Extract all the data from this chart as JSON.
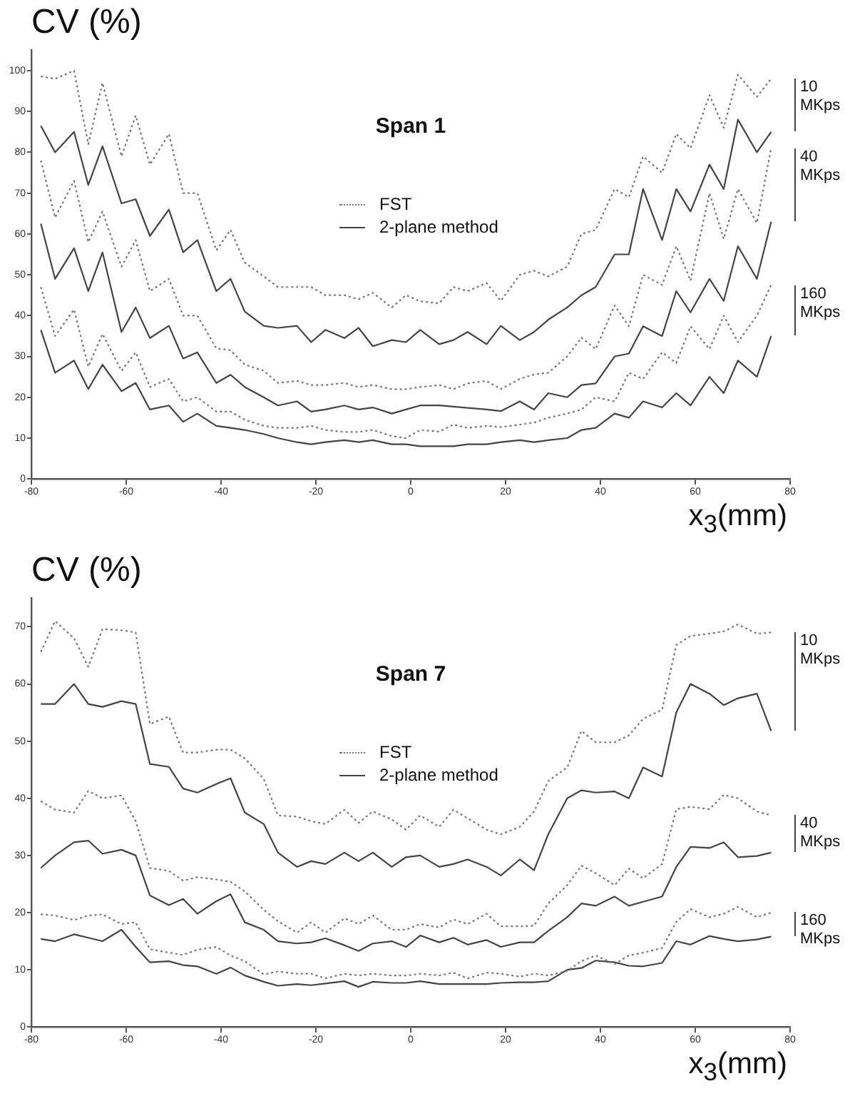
{
  "chart_data": [
    {
      "type": "line",
      "title": "Span 1",
      "ylabel": "CV (%)",
      "xlabel": "x$_{3}$(mm)",
      "x": [
        -78,
        -75,
        -71,
        -68,
        -65,
        -61,
        -58,
        -55,
        -51,
        -48,
        -45,
        -41,
        -38,
        -35,
        -31,
        -28,
        -24,
        -21,
        -18,
        -14,
        -11,
        -8,
        -4,
        -1,
        2,
        6,
        9,
        12,
        16,
        19,
        23,
        26,
        29,
        33,
        36,
        39,
        43,
        46,
        49,
        53,
        56,
        59,
        63,
        66,
        69,
        73,
        76
      ],
      "xlim": [
        -80,
        80
      ],
      "xticks": [
        -80,
        -60,
        -40,
        -20,
        0,
        20,
        40,
        60,
        80
      ],
      "ylim": [
        0,
        105
      ],
      "yticks": [
        0,
        10,
        20,
        30,
        40,
        50,
        60,
        70,
        80,
        90,
        100
      ],
      "grid": false,
      "legend": "top",
      "marker": "none",
      "series": [
        {
          "name": "FST",
          "color": "#777777",
          "line_style": "dotted",
          "values": [
            98.6,
            98,
            100,
            82,
            97,
            79,
            89,
            77,
            84.5,
            70,
            70,
            56,
            61,
            53,
            49.6,
            47,
            47,
            47,
            45,
            45,
            44,
            45.6,
            42,
            45,
            43.5,
            43,
            47,
            46,
            48,
            43.6,
            50,
            51,
            49.6,
            52,
            60,
            61,
            71,
            69,
            79,
            75,
            84.5,
            81,
            94,
            86,
            99,
            93.6,
            98
          ]
        },
        {
          "name": "2-plane method",
          "color": "#444444",
          "line_style": "solid",
          "values": [
            86.5,
            80,
            85,
            72,
            81.5,
            67.5,
            68.5,
            59.5,
            66,
            55.5,
            58.5,
            46,
            49,
            41,
            37.5,
            37,
            37.5,
            33.5,
            36.5,
            34.5,
            37,
            32.5,
            34,
            33.5,
            36.5,
            33,
            34,
            36,
            33,
            37.5,
            34,
            36,
            39,
            42,
            45,
            47,
            55,
            55,
            71,
            58.5,
            71,
            65.5,
            77,
            71,
            88,
            80,
            85
          ]
        },
        {
          "color": "#777777",
          "line_style": "dotted",
          "values": [
            78,
            64,
            73,
            58,
            65.5,
            52,
            58.5,
            46,
            49,
            40,
            40,
            32,
            31.5,
            28,
            26.5,
            23.5,
            24,
            23,
            23,
            23.5,
            22.5,
            23,
            22,
            22,
            22.5,
            23,
            22,
            23.4,
            24,
            22,
            24.5,
            25.6,
            26,
            30,
            34.6,
            31.8,
            42.5,
            37.4,
            50,
            47.5,
            57,
            48.6,
            70,
            58.8,
            71,
            62.7,
            81
          ]
        },
        {
          "color": "#444444",
          "line_style": "solid",
          "values": [
            62.5,
            49,
            56.5,
            46,
            55.5,
            36,
            42,
            34.5,
            37.5,
            29.5,
            31,
            23.5,
            25.5,
            22.5,
            20,
            18,
            19,
            16.5,
            17,
            18,
            17,
            17.5,
            16,
            17,
            18,
            18,
            17.7,
            17.4,
            17,
            16.6,
            19,
            17,
            21,
            20,
            23,
            23.4,
            30,
            30.7,
            37.4,
            35,
            46,
            40.8,
            49,
            43.6,
            57,
            49,
            63
          ]
        },
        {
          "color": "#777777",
          "line_style": "dotted",
          "values": [
            47,
            35,
            41.5,
            27.5,
            35.5,
            26.5,
            31,
            22.5,
            24.5,
            19,
            20,
            16.5,
            16.5,
            14.5,
            13,
            12.5,
            12.5,
            13,
            12,
            11.5,
            11.5,
            12,
            10.5,
            10,
            12,
            11.6,
            13.3,
            12.5,
            13,
            12.7,
            13.3,
            13.8,
            15,
            16,
            17,
            20,
            19,
            26,
            24.5,
            31,
            28.4,
            37.4,
            31.8,
            40,
            33.5,
            40,
            47.5
          ]
        },
        {
          "color": "#444444",
          "line_style": "solid",
          "values": [
            36.5,
            26,
            29,
            22,
            28,
            21.5,
            23.5,
            17,
            18,
            14,
            16,
            13,
            12.5,
            12,
            11,
            10,
            9,
            8.5,
            9,
            9.5,
            9,
            9.5,
            8.5,
            8.5,
            8,
            8,
            8,
            8.5,
            8.5,
            9,
            9.5,
            9,
            9.5,
            10,
            12,
            12.5,
            16,
            15,
            19,
            17.5,
            21,
            18,
            25,
            21,
            29,
            25,
            35
          ]
        }
      ],
      "annotations": [
        "10 MKps",
        "40 MKps",
        "160 MKps"
      ]
    },
    {
      "type": "line",
      "title": "Span 7",
      "ylabel": "CV (%)",
      "xlabel": "x$_{3}$(mm)",
      "x": [
        -78,
        -75,
        -71,
        -68,
        -65,
        -61,
        -58,
        -55,
        -51,
        -48,
        -45,
        -41,
        -38,
        -35,
        -31,
        -28,
        -24,
        -21,
        -18,
        -14,
        -11,
        -8,
        -4,
        -1,
        2,
        6,
        9,
        12,
        16,
        19,
        23,
        26,
        29,
        33,
        36,
        39,
        43,
        46,
        49,
        53,
        56,
        59,
        63,
        66,
        69,
        73,
        76
      ],
      "xlim": [
        -80,
        80
      ],
      "xticks": [
        -80,
        -60,
        -40,
        -20,
        0,
        20,
        40,
        60,
        80
      ],
      "ylim": [
        0,
        75
      ],
      "yticks": [
        0,
        10,
        20,
        30,
        40,
        50,
        60,
        70
      ],
      "grid": false,
      "legend": "top",
      "marker": "none",
      "series": [
        {
          "name": "FST",
          "color": "#777777",
          "line_style": "dotted",
          "values": [
            65.6,
            71,
            68,
            63,
            69.6,
            69.4,
            69,
            53,
            54.3,
            48,
            48,
            48.5,
            48.5,
            47,
            43.4,
            37,
            36.8,
            36,
            35.5,
            38,
            35.7,
            37.7,
            36.3,
            34.5,
            37,
            35,
            38,
            36.5,
            34.5,
            33.7,
            35,
            37.7,
            43,
            45.4,
            51.8,
            49.8,
            49.8,
            51,
            53.9,
            55.5,
            66.8,
            68.4,
            68.8,
            69.2,
            70.4,
            68.8,
            69
          ]
        },
        {
          "name": "2-plane method",
          "color": "#444444",
          "line_style": "solid",
          "values": [
            56.5,
            56.5,
            60,
            56.5,
            56,
            57,
            56.5,
            46,
            45.5,
            41.7,
            41,
            42.5,
            43.5,
            37.5,
            35.5,
            30.5,
            28,
            29,
            28.5,
            30.5,
            29,
            30.5,
            28,
            29.7,
            30,
            28,
            28.5,
            29.3,
            28,
            26.5,
            29.3,
            27.4,
            33.7,
            40,
            41.4,
            41,
            41.2,
            40,
            45.4,
            43.8,
            55,
            60,
            58.3,
            56.3,
            57.5,
            58.3,
            51.8
          ]
        },
        {
          "color": "#777777",
          "line_style": "dotted",
          "values": [
            39.5,
            38,
            37.5,
            41.3,
            40,
            40.5,
            36,
            27.8,
            27.3,
            25.6,
            26.2,
            25.8,
            25.4,
            23.7,
            20.5,
            18.5,
            16.5,
            18.3,
            16.5,
            19,
            18,
            19.5,
            17,
            17,
            18,
            17.4,
            18.8,
            18,
            19.8,
            17.6,
            17.6,
            17.7,
            21.6,
            24.8,
            28.2,
            26.9,
            24.8,
            27.7,
            26,
            28.5,
            38.1,
            38.5,
            38.1,
            40.6,
            40,
            37.7,
            37
          ]
        },
        {
          "color": "#444444",
          "line_style": "solid",
          "values": [
            27.8,
            30,
            32.3,
            32.6,
            30.3,
            31,
            30,
            23,
            21.3,
            22.4,
            19.8,
            22,
            23.2,
            18.3,
            17,
            15,
            14.6,
            14.8,
            15.5,
            14.3,
            13.3,
            14.6,
            15,
            14,
            16,
            14.8,
            15.6,
            14.4,
            15.2,
            14,
            14.8,
            14.8,
            16.8,
            19.2,
            21.6,
            21.2,
            22.8,
            21.2,
            21.9,
            22.8,
            28,
            31.5,
            31.3,
            32.3,
            29.7,
            29.9,
            30.5
          ]
        },
        {
          "color": "#777777",
          "line_style": "dotted",
          "values": [
            19.7,
            19.5,
            18.7,
            19.5,
            19.7,
            18,
            18.3,
            13.6,
            13,
            12.6,
            13.5,
            14,
            12.5,
            11.5,
            9.2,
            9.7,
            9.3,
            9.3,
            8.5,
            9.3,
            9,
            9.3,
            9,
            9,
            9.3,
            9,
            9.5,
            8.5,
            9.5,
            9.3,
            8.8,
            9.3,
            9,
            9.8,
            11.5,
            12.5,
            11,
            12.5,
            13,
            13.8,
            18.4,
            20.6,
            19.2,
            19.8,
            21,
            19.2,
            20
          ]
        },
        {
          "color": "#444444",
          "line_style": "solid",
          "values": [
            15.4,
            15,
            16.2,
            15.6,
            15,
            17,
            14,
            11.3,
            11.5,
            10.8,
            10.6,
            9.3,
            10.4,
            9,
            7.9,
            7.2,
            7.5,
            7.3,
            7.6,
            8,
            7,
            7.9,
            7.7,
            7.7,
            8,
            7.5,
            7.5,
            7.5,
            7.5,
            7.7,
            7.8,
            7.8,
            8,
            10,
            10.3,
            11.6,
            11.3,
            10.7,
            10.6,
            11.2,
            15,
            14.4,
            15.9,
            15.4,
            15,
            15.3,
            15.8
          ]
        }
      ],
      "annotations": [
        "10 MKps",
        "40 MKps",
        "160 MKps"
      ]
    }
  ]
}
